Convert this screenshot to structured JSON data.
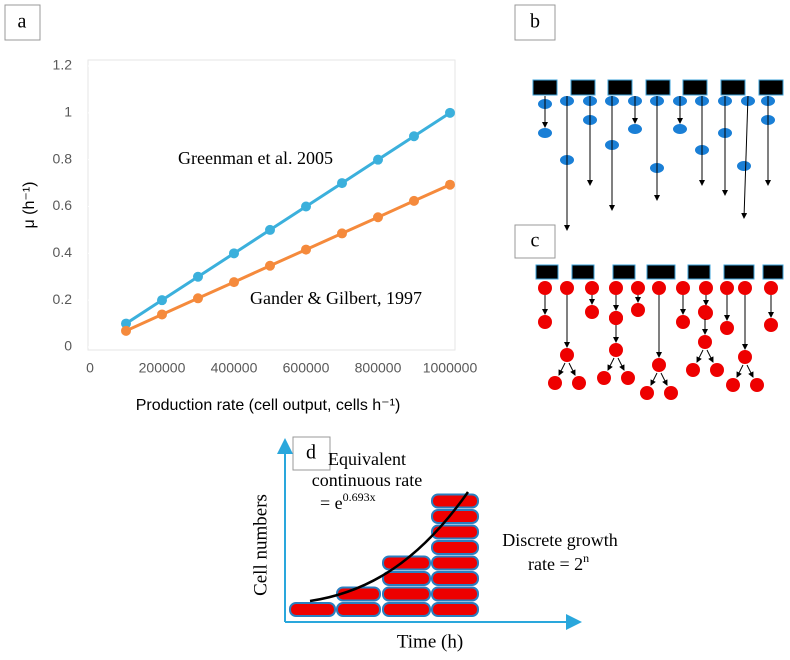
{
  "chart_data": {
    "type": "line",
    "panel_label": "a",
    "y_label": "μ (h⁻¹)",
    "x_label": "Production rate (cell output, cells h⁻¹)",
    "x": [
      100000,
      200000,
      300000,
      400000,
      500000,
      600000,
      700000,
      800000,
      900000,
      1000000
    ],
    "series": [
      {
        "name": "Greenman et al. 2005",
        "color": "#3bb0dc",
        "values": [
          0.1,
          0.2,
          0.3,
          0.4,
          0.5,
          0.6,
          0.7,
          0.8,
          0.9,
          1.0
        ]
      },
      {
        "name": "Gander & Gilbert, 1997",
        "color": "#f58a3c",
        "values": [
          0.069,
          0.139,
          0.208,
          0.277,
          0.347,
          0.416,
          0.485,
          0.554,
          0.624,
          0.693
        ]
      }
    ],
    "xlim": [
      0,
      1000000
    ],
    "xticks": [
      0,
      200000,
      400000,
      600000,
      800000,
      1000000
    ],
    "ylim": [
      0,
      1.2
    ],
    "yticks": [
      0,
      0.2,
      0.4,
      0.6,
      0.8,
      1,
      1.2
    ]
  },
  "panels": {
    "b": "b",
    "c": "c",
    "d": {
      "label": "d",
      "y_label": "Cell numbers",
      "x_label": "Time (h)",
      "continuous_line1": "Equivalent",
      "continuous_line2": "continuous rate",
      "continuous_prefix": "= e",
      "continuous_exponent": "0.693x",
      "discrete_line1": "Discrete growth",
      "discrete_prefix": "rate = 2",
      "discrete_exponent": "n"
    }
  }
}
